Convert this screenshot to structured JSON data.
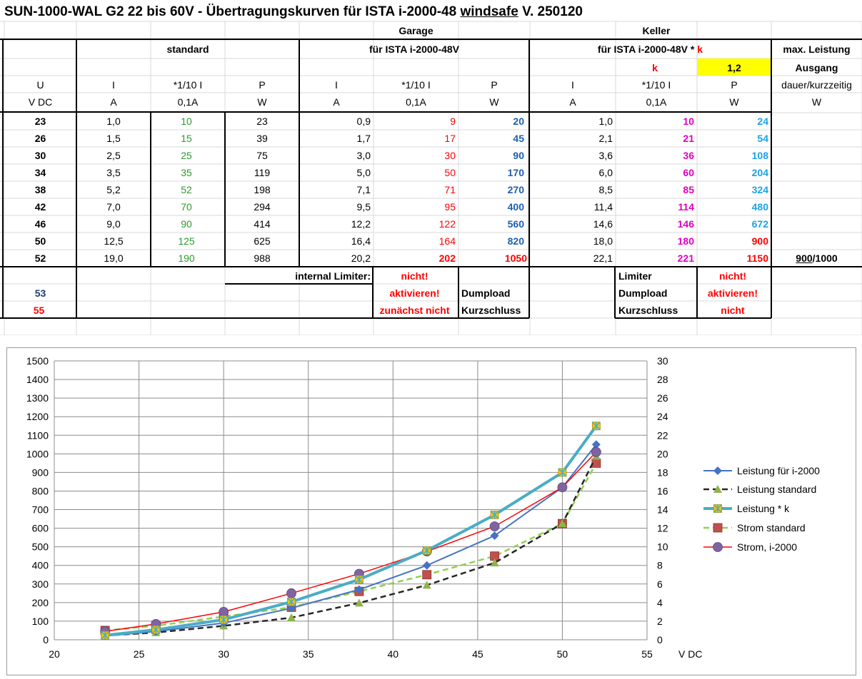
{
  "title": {
    "main": "SUN-1000-WAL G2 22 bis 60V - Übertragungskurven für ISTA i-2000-48",
    "underlined": "windsafe",
    "version": "V. 250120"
  },
  "colors": {
    "green": "#2e9a2e",
    "red": "#ff0000",
    "blue": "#1f5fb0",
    "magenta": "#e000c0",
    "cyan": "#1aa3e6",
    "navy": "#1f3c74",
    "k_highlight": "#ffff00"
  },
  "table": {
    "group_garage": "Garage",
    "group_keller": "Keller",
    "section_standard": "standard",
    "section_garage": "für ISTA i-2000-48V",
    "section_keller": "für ISTA i-2000-48V *",
    "section_keller_k": "k",
    "max_leistung": "max. Leistung",
    "k_label": "k",
    "k_value": "1,2",
    "ausgang": "Ausgang",
    "col_u": "U",
    "col_i": "I",
    "col_tenth": "*1/10 I",
    "col_p": "P",
    "dauer": "dauer/kurzzeitig",
    "unit_vdc": "V DC",
    "unit_a": "A",
    "unit_01a": "0,1A",
    "unit_w": "W",
    "rows": [
      {
        "u": "23",
        "i_std": "1,0",
        "t_std": "10",
        "p_std": "23",
        "i_g": "0,9",
        "t_g": "9",
        "p_g": "20",
        "i_k": "1,0",
        "t_k": "10",
        "p_k": "24",
        "max": ""
      },
      {
        "u": "26",
        "i_std": "1,5",
        "t_std": "15",
        "p_std": "39",
        "i_g": "1,7",
        "t_g": "17",
        "p_g": "45",
        "i_k": "2,1",
        "t_k": "21",
        "p_k": "54",
        "max": ""
      },
      {
        "u": "30",
        "i_std": "2,5",
        "t_std": "25",
        "p_std": "75",
        "i_g": "3,0",
        "t_g": "30",
        "p_g": "90",
        "i_k": "3,6",
        "t_k": "36",
        "p_k": "108",
        "max": ""
      },
      {
        "u": "34",
        "i_std": "3,5",
        "t_std": "35",
        "p_std": "119",
        "i_g": "5,0",
        "t_g": "50",
        "p_g": "170",
        "i_k": "6,0",
        "t_k": "60",
        "p_k": "204",
        "max": ""
      },
      {
        "u": "38",
        "i_std": "5,2",
        "t_std": "52",
        "p_std": "198",
        "i_g": "7,1",
        "t_g": "71",
        "p_g": "270",
        "i_k": "8,5",
        "t_k": "85",
        "p_k": "324",
        "max": ""
      },
      {
        "u": "42",
        "i_std": "7,0",
        "t_std": "70",
        "p_std": "294",
        "i_g": "9,5",
        "t_g": "95",
        "p_g": "400",
        "i_k": "11,4",
        "t_k": "114",
        "p_k": "480",
        "max": ""
      },
      {
        "u": "46",
        "i_std": "9,0",
        "t_std": "90",
        "p_std": "414",
        "i_g": "12,2",
        "t_g": "122",
        "p_g": "560",
        "i_k": "14,6",
        "t_k": "146",
        "p_k": "672",
        "max": ""
      },
      {
        "u": "50",
        "i_std": "12,5",
        "t_std": "125",
        "p_std": "625",
        "i_g": "16,4",
        "t_g": "164",
        "p_g": "820",
        "i_k": "18,0",
        "t_k": "180",
        "p_k": "900",
        "max": ""
      },
      {
        "u": "52",
        "i_std": "19,0",
        "t_std": "190",
        "p_std": "988",
        "i_g": "20,2",
        "t_g": "202",
        "p_g": "1050",
        "i_k": "22,1",
        "t_k": "221",
        "p_k": "1150",
        "max_a": "900",
        "max_b": "/1000"
      }
    ],
    "footer": {
      "internal_limiter": "internal Limiter:",
      "nicht": "nicht!",
      "aktivieren": "aktivieren!",
      "zunaechst_nicht": "zunächst nicht",
      "dumpload": "Dumpload",
      "kurzschluss": "Kurzschluss",
      "limiter": "Limiter",
      "nicht_plain": "nicht",
      "v53": "53",
      "v55": "55"
    }
  },
  "chart_data": {
    "type": "line",
    "title": "",
    "xlabel": "V DC",
    "ylabel": "",
    "xlim": [
      20,
      55
    ],
    "xticks": [
      20,
      25,
      30,
      35,
      40,
      45,
      50,
      55
    ],
    "ylim_left": [
      0,
      1500
    ],
    "yticks_left": [
      0,
      100,
      200,
      300,
      400,
      500,
      600,
      700,
      800,
      900,
      1000,
      1100,
      1200,
      1300,
      1400,
      1500
    ],
    "ylim_right": [
      0,
      30
    ],
    "yticks_right": [
      0,
      2,
      4,
      6,
      8,
      10,
      12,
      14,
      16,
      18,
      20,
      22,
      24,
      26,
      28,
      30
    ],
    "grid": true,
    "legend_position": "right",
    "series": [
      {
        "name": "Leistung für i-2000",
        "axis": "left",
        "color": "#4472c4",
        "marker": "diamond",
        "dash": "solid",
        "width": 2,
        "x": [
          23,
          26,
          30,
          34,
          38,
          42,
          46,
          50,
          52
        ],
        "y": [
          20,
          45,
          90,
          170,
          270,
          400,
          560,
          820,
          1050
        ]
      },
      {
        "name": "Leistung standard",
        "axis": "left",
        "color": "#262626",
        "marker": "triangle",
        "marker_color": "#8fb34a",
        "dash": "dashed",
        "width": 2.5,
        "x": [
          23,
          26,
          30,
          34,
          38,
          42,
          46,
          50,
          52
        ],
        "y": [
          23,
          39,
          75,
          119,
          198,
          294,
          414,
          625,
          988
        ]
      },
      {
        "name": "Leistung * k",
        "axis": "left",
        "color": "#4bacc6",
        "marker": "starsquare",
        "marker_color": "#f5c400",
        "dash": "solid",
        "width": 4,
        "x": [
          23,
          26,
          30,
          34,
          38,
          42,
          46,
          50,
          52
        ],
        "y": [
          24,
          54,
          108,
          204,
          324,
          480,
          672,
          900,
          1150
        ]
      },
      {
        "name": "Strom standard",
        "axis": "right",
        "color": "#92d050",
        "marker": "square",
        "marker_color": "#c0504d",
        "dash": "dashed",
        "width": 2.5,
        "x": [
          23,
          26,
          30,
          34,
          38,
          42,
          46,
          50,
          52
        ],
        "y": [
          1.0,
          1.5,
          2.5,
          3.5,
          5.2,
          7.0,
          9.0,
          12.5,
          19.0
        ]
      },
      {
        "name": "Strom, i-2000",
        "axis": "right",
        "color": "#ff0000",
        "marker": "circle",
        "marker_color": "#8064a2",
        "dash": "solid",
        "width": 1.5,
        "x": [
          23,
          26,
          30,
          34,
          38,
          42,
          46,
          50,
          52
        ],
        "y": [
          0.9,
          1.7,
          3.0,
          5.0,
          7.1,
          9.5,
          12.2,
          16.4,
          20.2
        ]
      }
    ]
  }
}
